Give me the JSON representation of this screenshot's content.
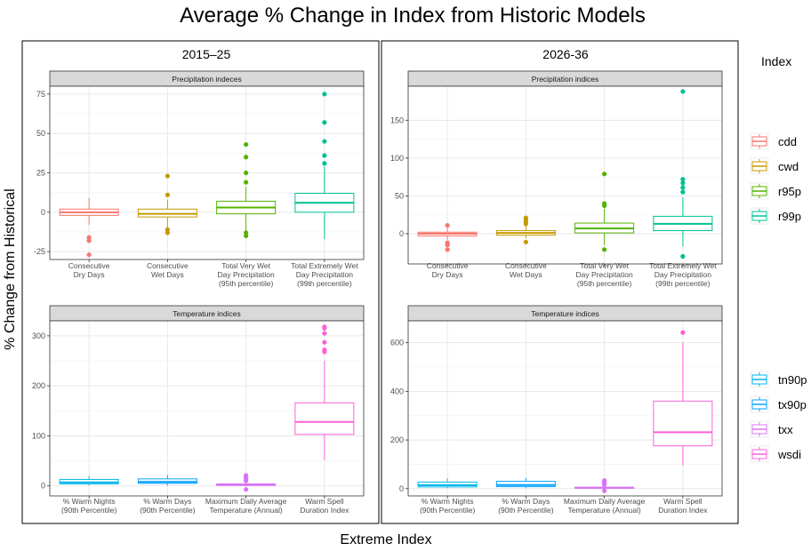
{
  "title": "Average % Change in Index from Historic Models",
  "xlabel": "Extreme Index",
  "ylabel": "% Change from Historical",
  "legend": {
    "title": "Index",
    "groups": [
      [
        "cdd",
        "cwd",
        "r95p",
        "r99p"
      ],
      [
        "tn90p",
        "tx90p",
        "txx",
        "wsdi"
      ]
    ]
  },
  "colors": {
    "cdd": "#F8766D",
    "cwd": "#C49A00",
    "r95p": "#53B400",
    "r99p": "#00C094",
    "tn90p": "#00B6EB",
    "tx90p": "#06A4FF",
    "txx": "#D774F6",
    "wsdi": "#FB61D7"
  },
  "chart_data": [
    {
      "type": "box",
      "period": "2015–25",
      "panels": [
        {
          "strip": "Precipitation indeces",
          "ylim": [
            -30,
            80
          ],
          "yticks": [
            -25,
            0,
            25,
            50,
            75
          ],
          "boxes": [
            {
              "index": "cdd",
              "label": [
                "Consecutive",
                "Dry Days"
              ],
              "lower_whisker": -8,
              "q1": -2,
              "median": 0,
              "q3": 2,
              "upper_whisker": 9,
              "outliers": [
                -16,
                -18,
                -27
              ]
            },
            {
              "index": "cwd",
              "label": [
                "Consecutive",
                "Wet Days"
              ],
              "lower_whisker": -10,
              "q1": -3,
              "median": -1,
              "q3": 2,
              "upper_whisker": 8,
              "outliers": [
                -11,
                -13,
                11,
                23
              ]
            },
            {
              "index": "r95p",
              "label": [
                "Total Very Wet",
                "Day Precipitation",
                "(95th percentile)"
              ],
              "lower_whisker": -12,
              "q1": -1,
              "median": 3,
              "q3": 7,
              "upper_whisker": 16,
              "outliers": [
                -13,
                -15,
                19,
                25,
                35,
                43
              ]
            },
            {
              "index": "r99p",
              "label": [
                "Total Extremely Wet",
                "Day Precipitation",
                "(99th percentile)"
              ],
              "lower_whisker": -17,
              "q1": 0,
              "median": 6,
              "q3": 12,
              "upper_whisker": 29,
              "outliers": [
                31,
                36,
                45,
                57,
                75
              ]
            }
          ]
        },
        {
          "strip": "Temperature indices",
          "ylim": [
            -20,
            330
          ],
          "yticks": [
            0,
            100,
            200,
            300
          ],
          "boxes": [
            {
              "index": "tn90p",
              "label": [
                "% Warm Nights",
                "(90th Percentile)"
              ],
              "lower_whisker": 1,
              "q1": 4,
              "median": 7,
              "q3": 13,
              "upper_whisker": 20,
              "outliers": []
            },
            {
              "index": "tx90p",
              "label": [
                "% Warm Days",
                "(90th Percentile)"
              ],
              "lower_whisker": 1,
              "q1": 5,
              "median": 8,
              "q3": 14,
              "upper_whisker": 22,
              "outliers": []
            },
            {
              "index": "txx",
              "label": [
                "Maximum Daily Average",
                "Temperature (Annual)"
              ],
              "lower_whisker": -1,
              "q1": 1,
              "median": 2,
              "q3": 4,
              "upper_whisker": 7,
              "outliers": [
                -7,
                10,
                13,
                16,
                19,
                21
              ]
            },
            {
              "index": "wsdi",
              "label": [
                "Warm Spell",
                "Duration Index"
              ],
              "lower_whisker": 52,
              "q1": 103,
              "median": 128,
              "q3": 166,
              "upper_whisker": 250,
              "outliers": [
                268,
                272,
                287,
                305,
                315,
                318
              ]
            }
          ]
        }
      ]
    },
    {
      "type": "box",
      "period": "2026-36",
      "panels": [
        {
          "strip": "Precipitation indices",
          "ylim": [
            -40,
            195
          ],
          "yticks": [
            0,
            50,
            100,
            150
          ],
          "boxes": [
            {
              "index": "cdd",
              "label": [
                "Consecutive",
                "Dry Days"
              ],
              "lower_whisker": -8,
              "q1": -3,
              "median": 0,
              "q3": 2,
              "upper_whisker": 8,
              "outliers": [
                -12,
                -15,
                -21,
                11
              ]
            },
            {
              "index": "cwd",
              "label": [
                "Consecutive",
                "Wet Days"
              ],
              "lower_whisker": -6,
              "q1": -2,
              "median": 1,
              "q3": 4,
              "upper_whisker": 10,
              "outliers": [
                -11,
                13,
                16,
                19,
                21
              ]
            },
            {
              "index": "r95p",
              "label": [
                "Total Very Wet",
                "Day Precipitation",
                "(95th percentile)"
              ],
              "lower_whisker": -15,
              "q1": 1,
              "median": 7,
              "q3": 14,
              "upper_whisker": 33,
              "outliers": [
                -21,
                37,
                40,
                79
              ]
            },
            {
              "index": "r99p",
              "label": [
                "Total Extremely Wet",
                "Day Precipitation",
                "(99th percentile)"
              ],
              "lower_whisker": -17,
              "q1": 4,
              "median": 13,
              "q3": 23,
              "upper_whisker": 48,
              "outliers": [
                -30,
                55,
                61,
                67,
                72,
                188
              ]
            }
          ]
        },
        {
          "strip": "Temperature indices",
          "ylim": [
            -30,
            690
          ],
          "yticks": [
            0,
            200,
            400,
            600
          ],
          "boxes": [
            {
              "index": "tn90p",
              "label": [
                "% Warm Nights",
                "(90th Percentile)"
              ],
              "lower_whisker": 2,
              "q1": 7,
              "median": 14,
              "q3": 27,
              "upper_whisker": 42,
              "outliers": []
            },
            {
              "index": "tx90p",
              "label": [
                "% Warm Days",
                "(90th Percentile)"
              ],
              "lower_whisker": 2,
              "q1": 8,
              "median": 15,
              "q3": 30,
              "upper_whisker": 44,
              "outliers": []
            },
            {
              "index": "txx",
              "label": [
                "Maximum Daily Average",
                "Temperature (Annual)"
              ],
              "lower_whisker": -2,
              "q1": 1,
              "median": 3,
              "q3": 6,
              "upper_whisker": 12,
              "outliers": [
                -9,
                16,
                22,
                28,
                33
              ]
            },
            {
              "index": "wsdi",
              "label": [
                "Warm Spell",
                "Duration Index"
              ],
              "lower_whisker": 95,
              "q1": 176,
              "median": 232,
              "q3": 360,
              "upper_whisker": 600,
              "outliers": [
                642
              ]
            }
          ]
        }
      ]
    }
  ]
}
